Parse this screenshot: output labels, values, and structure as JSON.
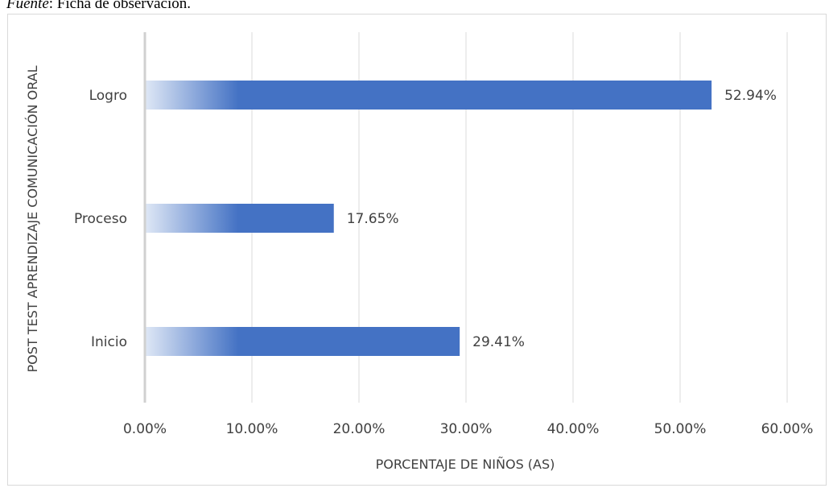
{
  "source_note": {
    "label": "Fuente",
    "text": ": Ficha de observación."
  },
  "chart_data": {
    "type": "bar",
    "orientation": "horizontal",
    "categories": [
      "Logro",
      "Proceso",
      "Inicio"
    ],
    "values": [
      52.94,
      17.65,
      29.41
    ],
    "data_labels": [
      "52.94%",
      "17.65%",
      "29.41%"
    ],
    "title": "",
    "xlabel": "PORCENTAJE DE NIÑOS (AS)",
    "ylabel": "POST TEST APRENDIZAJE COMUNICACIÓN ORAL",
    "xlim": [
      0,
      60
    ],
    "x_ticks": [
      0,
      10,
      20,
      30,
      40,
      50,
      60
    ],
    "x_tick_labels": [
      "0.00%",
      "10.00%",
      "20.00%",
      "30.00%",
      "40.00%",
      "50.00%",
      "60.00%"
    ],
    "grid": true,
    "legend": "none",
    "bar_color": "#4472c4",
    "bar_fade_color": "#dde6f5",
    "grid_color": "#e7e7e7",
    "axis_color": "#d0d0d0"
  }
}
